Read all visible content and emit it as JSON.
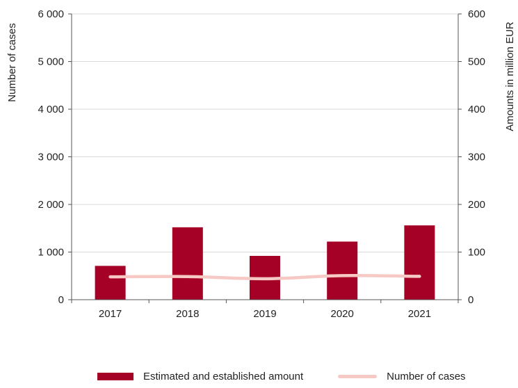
{
  "chart_data": {
    "type": "bar",
    "categories": [
      "2017",
      "2018",
      "2019",
      "2020",
      "2021"
    ],
    "series": [
      {
        "name": "Estimated and established amount",
        "type": "bar",
        "axis": "right",
        "values": [
          71,
          152,
          92,
          122,
          156
        ]
      },
      {
        "name": "Number of cases",
        "type": "line",
        "axis": "left",
        "values": [
          480,
          485,
          440,
          505,
          490
        ]
      }
    ],
    "ylabel_left": "Number of cases",
    "ylabel_right": "Amounts in million EUR",
    "ylim_left": [
      0,
      6000
    ],
    "ylim_right": [
      0,
      600
    ],
    "yticks_left": [
      "0",
      "1 000",
      "2 000",
      "3 000",
      "4 000",
      "5 000",
      "6 000"
    ],
    "yticks_right": [
      "0",
      "100",
      "200",
      "300",
      "400",
      "500",
      "600"
    ],
    "grid": true,
    "legend_position": "bottom",
    "colors": {
      "bar": "#a50026",
      "line": "#f7c9c5",
      "grid": "#d9d9d9",
      "axis": "#555555"
    }
  },
  "legend": {
    "bar_label": "Estimated and established amount",
    "line_label": "Number of cases"
  }
}
